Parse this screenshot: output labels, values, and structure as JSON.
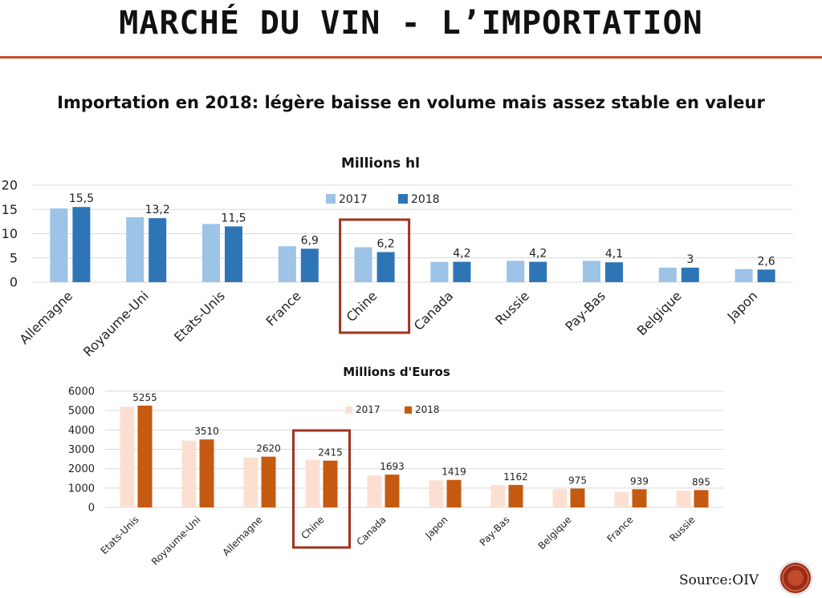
{
  "slide": {
    "title": "MARCHÉ DU VIN - L’IMPORTATION",
    "subtitle": "Importation en 2018: légère baisse en volume mais assez stable en valeur",
    "source": "Source:OIV",
    "accent_color": "#c0502a"
  },
  "chart_data": [
    {
      "type": "bar",
      "title": "Millions hl",
      "categories": [
        "Allemagne",
        "Royaume-Uni",
        "Etats-Unis",
        "France",
        "Chine",
        "Canada",
        "Russie",
        "Pay-Bas",
        "Belgique",
        "Japon"
      ],
      "series": [
        {
          "name": "2017",
          "color": "#9dc3e6",
          "values": [
            15.2,
            13.4,
            12.0,
            7.4,
            7.2,
            4.2,
            4.4,
            4.4,
            3.0,
            2.7
          ]
        },
        {
          "name": "2018",
          "color": "#2e75b6",
          "values": [
            15.5,
            13.2,
            11.5,
            6.9,
            6.2,
            4.2,
            4.2,
            4.1,
            3.0,
            2.6
          ]
        }
      ],
      "data_labels": [
        "15,5",
        "13,2",
        "11,5",
        "6,9",
        "6,2",
        "4,2",
        "4,2",
        "4,1",
        "3",
        "2,6"
      ],
      "ylim": [
        0,
        20
      ],
      "yticks": [
        "0",
        "5",
        "10",
        "15",
        "20"
      ],
      "grid": true,
      "legend": "top",
      "highlight_category": "Chine",
      "highlight_color": "#a0331e"
    },
    {
      "type": "bar",
      "title": "Millions d'Euros",
      "categories": [
        "Etats-Unis",
        "Royaume-Uni",
        "Allemagne",
        "Chine",
        "Canada",
        "Japon",
        "Pay-Bas",
        "Belgique",
        "France",
        "Russie"
      ],
      "series": [
        {
          "name": "2017",
          "color": "#fbe0d2",
          "values": [
            5200,
            3450,
            2570,
            2460,
            1650,
            1400,
            1150,
            940,
            800,
            870
          ]
        },
        {
          "name": "2018",
          "color": "#c55a11",
          "values": [
            5255,
            3510,
            2620,
            2415,
            1693,
            1419,
            1162,
            975,
            939,
            895
          ]
        }
      ],
      "data_labels": [
        "5255",
        "3510",
        "2620",
        "2415",
        "1693",
        "1419",
        "1162",
        "975",
        "939",
        "895"
      ],
      "ylim": [
        0,
        6000
      ],
      "yticks": [
        "0",
        "1000",
        "2000",
        "3000",
        "4000",
        "5000",
        "6000"
      ],
      "grid": true,
      "legend": "top",
      "highlight_category": "Chine",
      "highlight_color": "#a0331e"
    }
  ]
}
